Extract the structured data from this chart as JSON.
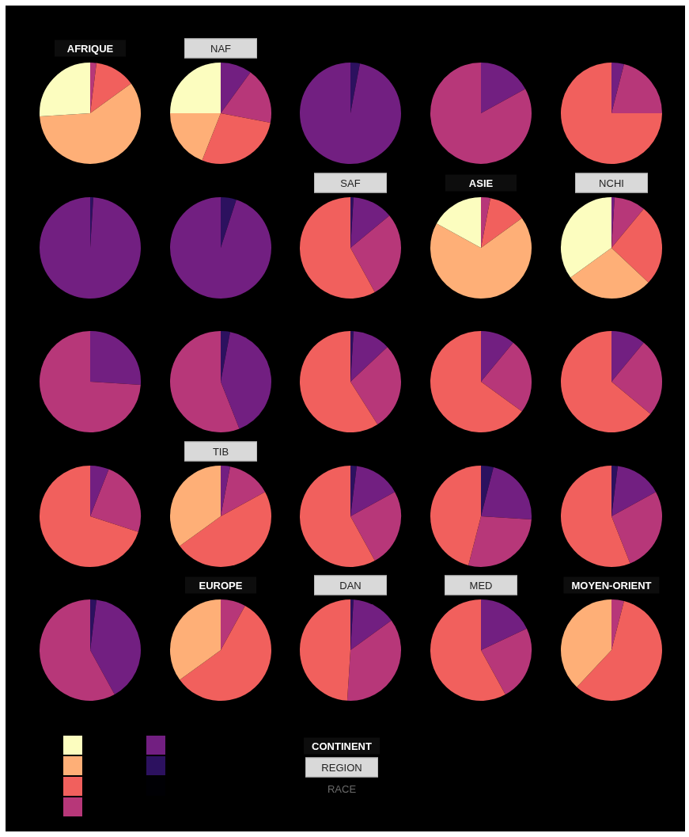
{
  "chart_data": [
    {
      "type": "pie",
      "title": "AFRIQUE",
      "categories": [
        null,
        null,
        null,
        null
      ],
      "values": [
        2,
        13,
        59,
        26
      ],
      "colors": [
        "#b73779",
        "#f1605d",
        "#feaf77",
        "#fcfdbf"
      ]
    },
    {
      "type": "pie",
      "subtitle": "NAF",
      "categories": [
        null,
        null,
        null,
        null,
        null
      ],
      "values": [
        10,
        18,
        28,
        19,
        25
      ],
      "colors": [
        "#721f81",
        "#b73779",
        "#f1605d",
        "#feaf77",
        "#fcfdbf"
      ]
    },
    {
      "type": "pie",
      "categories": [
        null,
        null
      ],
      "values": [
        3,
        97
      ],
      "colors": [
        "#2c115f",
        "#721f81"
      ]
    },
    {
      "type": "pie",
      "categories": [
        null,
        null
      ],
      "values": [
        17,
        83
      ],
      "colors": [
        "#721f81",
        "#b73779"
      ]
    },
    {
      "type": "pie",
      "categories": [
        null,
        null,
        null
      ],
      "values": [
        4,
        21,
        75
      ],
      "colors": [
        "#721f81",
        "#b73779",
        "#f1605d"
      ]
    },
    {
      "type": "pie",
      "categories": [
        null,
        null
      ],
      "values": [
        1,
        99
      ],
      "colors": [
        "#2c115f",
        "#721f81"
      ]
    },
    {
      "type": "pie",
      "categories": [
        null,
        null
      ],
      "values": [
        5,
        95
      ],
      "colors": [
        "#2c115f",
        "#721f81"
      ]
    },
    {
      "type": "pie",
      "subtitle": "SAF",
      "categories": [
        null,
        null,
        null,
        null
      ],
      "values": [
        1,
        13,
        28,
        58
      ],
      "colors": [
        "#2c115f",
        "#721f81",
        "#b73779",
        "#f1605d"
      ]
    },
    {
      "type": "pie",
      "title": "ASIE",
      "categories": [
        null,
        null,
        null,
        null
      ],
      "values": [
        3,
        12,
        68,
        17
      ],
      "colors": [
        "#b73779",
        "#f1605d",
        "#feaf77",
        "#fcfdbf"
      ]
    },
    {
      "type": "pie",
      "subtitle": "NCHI",
      "categories": [
        null,
        null,
        null,
        null,
        null
      ],
      "values": [
        1,
        10,
        26,
        28,
        35
      ],
      "colors": [
        "#721f81",
        "#b73779",
        "#f1605d",
        "#feaf77",
        "#fcfdbf"
      ]
    },
    {
      "type": "pie",
      "categories": [
        null,
        null
      ],
      "values": [
        26,
        74
      ],
      "colors": [
        "#721f81",
        "#b73779"
      ]
    },
    {
      "type": "pie",
      "categories": [
        null,
        null,
        null
      ],
      "values": [
        3,
        41,
        56
      ],
      "colors": [
        "#2c115f",
        "#721f81",
        "#b73779"
      ]
    },
    {
      "type": "pie",
      "categories": [
        null,
        null,
        null,
        null
      ],
      "values": [
        1,
        12,
        28,
        59
      ],
      "colors": [
        "#2c115f",
        "#721f81",
        "#b73779",
        "#f1605d"
      ]
    },
    {
      "type": "pie",
      "categories": [
        null,
        null,
        null
      ],
      "values": [
        11,
        24,
        65
      ],
      "colors": [
        "#721f81",
        "#b73779",
        "#f1605d"
      ]
    },
    {
      "type": "pie",
      "categories": [
        null,
        null,
        null
      ],
      "values": [
        11,
        25,
        64
      ],
      "colors": [
        "#721f81",
        "#b73779",
        "#f1605d"
      ]
    },
    {
      "type": "pie",
      "categories": [
        null,
        null,
        null
      ],
      "values": [
        6,
        24,
        70
      ],
      "colors": [
        "#721f81",
        "#b73779",
        "#f1605d"
      ]
    },
    {
      "type": "pie",
      "subtitle": "TIB",
      "categories": [
        null,
        null,
        null,
        null
      ],
      "values": [
        3,
        14,
        48,
        35
      ],
      "colors": [
        "#721f81",
        "#b73779",
        "#f1605d",
        "#feaf77"
      ]
    },
    {
      "type": "pie",
      "categories": [
        null,
        null,
        null,
        null
      ],
      "values": [
        2,
        15,
        25,
        58
      ],
      "colors": [
        "#2c115f",
        "#721f81",
        "#b73779",
        "#f1605d"
      ]
    },
    {
      "type": "pie",
      "categories": [
        null,
        null,
        null,
        null
      ],
      "values": [
        4,
        22,
        28,
        46
      ],
      "colors": [
        "#2c115f",
        "#721f81",
        "#b73779",
        "#f1605d"
      ]
    },
    {
      "type": "pie",
      "categories": [
        null,
        null,
        null,
        null
      ],
      "values": [
        2,
        15,
        27,
        56
      ],
      "colors": [
        "#2c115f",
        "#721f81",
        "#b73779",
        "#f1605d"
      ]
    },
    {
      "type": "pie",
      "categories": [
        null,
        null,
        null
      ],
      "values": [
        2,
        40,
        58
      ],
      "colors": [
        "#2c115f",
        "#721f81",
        "#b73779"
      ]
    },
    {
      "type": "pie",
      "title": "EUROPE",
      "categories": [
        null,
        null,
        null
      ],
      "values": [
        8,
        57,
        35
      ],
      "colors": [
        "#b73779",
        "#f1605d",
        "#feaf77"
      ]
    },
    {
      "type": "pie",
      "subtitle": "DAN",
      "categories": [
        null,
        null,
        null,
        null
      ],
      "values": [
        1,
        14,
        36,
        49
      ],
      "colors": [
        "#2c115f",
        "#721f81",
        "#b73779",
        "#f1605d"
      ]
    },
    {
      "type": "pie",
      "subtitle": "MED",
      "categories": [
        null,
        null,
        null
      ],
      "values": [
        18,
        24,
        58
      ],
      "colors": [
        "#721f81",
        "#b73779",
        "#f1605d"
      ]
    },
    {
      "type": "pie",
      "title": "MOYEN-ORIENT",
      "categories": [
        null,
        null,
        null
      ],
      "values": [
        4,
        58,
        38
      ],
      "colors": [
        "#b73779",
        "#f1605d",
        "#feaf77"
      ]
    },
    {
      "type": "other",
      "annotations": [
        "CONTINENT",
        "REGION",
        "RACE"
      ],
      "colors": [
        "#fcfdbf",
        "#feaf77",
        "#f1605d",
        "#b73779",
        "#721f81",
        "#2c115f",
        "#000004"
      ]
    }
  ]
}
